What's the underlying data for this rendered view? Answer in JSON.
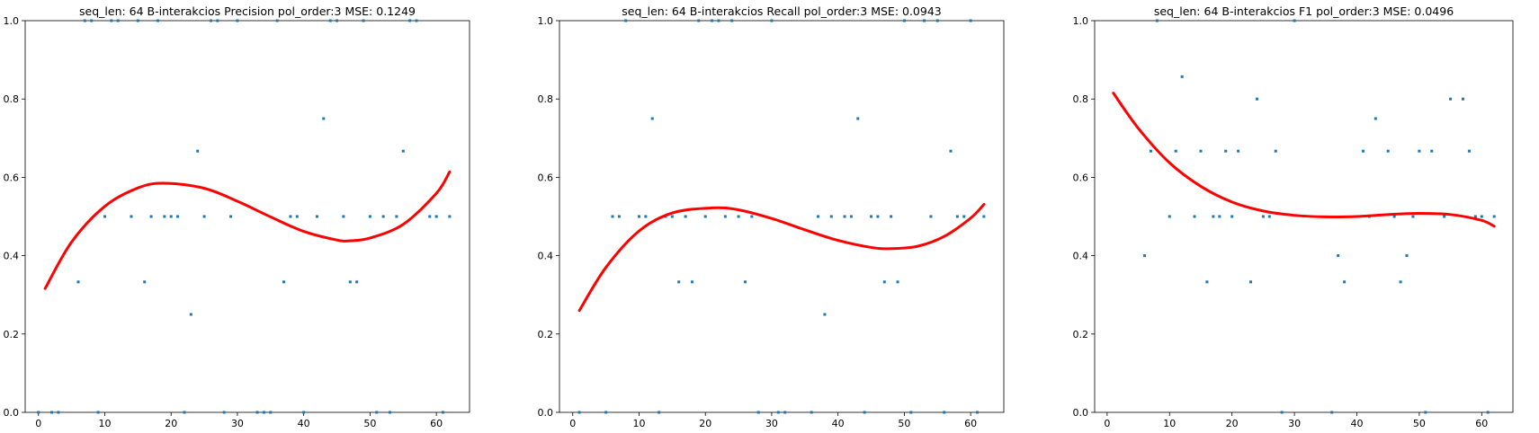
{
  "chart_data": [
    {
      "type": "scatter",
      "title": "seq_len: 64    B-interakcios   Precision   pol_order:3    MSE: 0.1249",
      "xlabel": "",
      "ylabel": "",
      "xlim": [
        -2,
        65
      ],
      "ylim": [
        0,
        1
      ],
      "xticks": [
        0,
        10,
        20,
        30,
        40,
        50,
        60
      ],
      "yticks": [
        0.0,
        0.2,
        0.4,
        0.6,
        0.8,
        1.0
      ],
      "point_color": "#1f77b4",
      "fit_color": "#ff0000",
      "points": {
        "x": [
          0,
          2,
          3,
          6,
          7,
          8,
          9,
          10,
          11,
          12,
          14,
          15,
          16,
          17,
          18,
          19,
          20,
          21,
          22,
          23,
          24,
          25,
          26,
          27,
          28,
          29,
          30,
          33,
          34,
          35,
          36,
          37,
          38,
          39,
          40,
          42,
          43,
          44,
          45,
          46,
          47,
          48,
          49,
          50,
          51,
          52,
          53,
          54,
          55,
          56,
          57,
          59,
          60,
          61,
          62
        ],
        "y": [
          0,
          0,
          0,
          0.333,
          1,
          1,
          0,
          0.5,
          1,
          1,
          0.5,
          1,
          0.333,
          0.5,
          1,
          0.5,
          0.5,
          0.5,
          0,
          0.25,
          0.667,
          0.5,
          1,
          1,
          0,
          0.5,
          1,
          0,
          0,
          0,
          1,
          0.333,
          0.5,
          0.5,
          0,
          0.5,
          0.75,
          1,
          1,
          0.5,
          0.333,
          0.333,
          1,
          0.5,
          0,
          0.5,
          0,
          0.5,
          0.667,
          1,
          1,
          0.5,
          0.5,
          0,
          0.5
        ]
      },
      "fit_curve": {
        "x": [
          1,
          5,
          10,
          15,
          19,
          25,
          30,
          35,
          40,
          45,
          47,
          50,
          55,
          60,
          62
        ],
        "y": [
          0.316,
          0.435,
          0.526,
          0.573,
          0.585,
          0.572,
          0.539,
          0.499,
          0.462,
          0.44,
          0.438,
          0.445,
          0.48,
          0.559,
          0.614
        ]
      }
    },
    {
      "type": "scatter",
      "title": "seq_len: 64    B-interakcios   Recall   pol_order:3    MSE: 0.0943",
      "xlabel": "",
      "ylabel": "",
      "xlim": [
        -2,
        65
      ],
      "ylim": [
        0,
        1
      ],
      "xticks": [
        0,
        10,
        20,
        30,
        40,
        50,
        60
      ],
      "yticks": [
        0.0,
        0.2,
        0.4,
        0.6,
        0.8,
        1.0
      ],
      "point_color": "#1f77b4",
      "fit_color": "#ff0000",
      "points": {
        "x": [
          1,
          5,
          6,
          7,
          8,
          10,
          11,
          12,
          13,
          14,
          15,
          16,
          17,
          18,
          19,
          20,
          21,
          22,
          23,
          24,
          25,
          26,
          27,
          28,
          30,
          31,
          32,
          36,
          37,
          38,
          39,
          41,
          42,
          43,
          44,
          45,
          46,
          47,
          48,
          49,
          50,
          51,
          53,
          54,
          55,
          56,
          57,
          58,
          59,
          60,
          61,
          62
        ],
        "y": [
          0,
          0,
          0.5,
          0.5,
          1,
          0.5,
          0.5,
          0.75,
          0,
          0.5,
          0.5,
          0.333,
          0.5,
          0.333,
          1,
          0.5,
          1,
          1,
          0.5,
          1,
          0.5,
          0.333,
          0.5,
          0,
          1,
          0,
          0,
          0,
          0.5,
          0.25,
          0.5,
          0.5,
          0.5,
          0.75,
          0,
          0.5,
          0.5,
          0.333,
          0.5,
          0.333,
          1,
          0,
          1,
          0.5,
          1,
          0,
          0.667,
          0.5,
          0.5,
          1,
          0,
          0.5
        ]
      },
      "fit_curve": {
        "x": [
          1,
          5,
          10,
          15,
          21,
          25,
          30,
          35,
          40,
          45,
          48,
          52,
          56,
          60,
          62
        ],
        "y": [
          0.26,
          0.37,
          0.463,
          0.509,
          0.522,
          0.517,
          0.495,
          0.466,
          0.439,
          0.421,
          0.418,
          0.424,
          0.449,
          0.496,
          0.531
        ]
      }
    },
    {
      "type": "scatter",
      "title": "seq_len: 64    B-interakcios   F1   pol_order:3    MSE: 0.0496",
      "xlabel": "",
      "ylabel": "",
      "xlim": [
        -2,
        65
      ],
      "ylim": [
        0,
        1
      ],
      "xticks": [
        0,
        10,
        20,
        30,
        40,
        50,
        60
      ],
      "yticks": [
        0.0,
        0.2,
        0.4,
        0.6,
        0.8,
        1.0
      ],
      "point_color": "#1f77b4",
      "fit_color": "#ff0000",
      "points": {
        "x": [
          6,
          7,
          8,
          10,
          11,
          12,
          14,
          15,
          16,
          17,
          18,
          19,
          20,
          21,
          23,
          24,
          25,
          26,
          27,
          28,
          30,
          36,
          37,
          38,
          41,
          42,
          43,
          45,
          46,
          47,
          48,
          49,
          50,
          51,
          52,
          54,
          55,
          57,
          58,
          59,
          60,
          61,
          62
        ],
        "y": [
          0.4,
          0.667,
          1,
          0.5,
          0.667,
          0.857,
          0.5,
          0.667,
          0.333,
          0.5,
          0.5,
          0.667,
          0.5,
          0.667,
          0.333,
          0.8,
          0.5,
          0.5,
          0.667,
          0,
          1,
          0,
          0.4,
          0.333,
          0.667,
          0.5,
          0.75,
          0.667,
          0.5,
          0.333,
          0.4,
          0.5,
          0.667,
          0,
          0.667,
          0.5,
          0.8,
          0.8,
          0.667,
          0.5,
          0.5,
          0,
          0.5
        ]
      },
      "fit_curve": {
        "x": [
          1,
          5,
          10,
          15,
          20,
          25,
          30,
          35,
          40,
          45,
          50,
          55,
          60,
          62
        ],
        "y": [
          0.815,
          0.725,
          0.637,
          0.577,
          0.537,
          0.514,
          0.503,
          0.499,
          0.5,
          0.505,
          0.508,
          0.505,
          0.49,
          0.475
        ]
      }
    }
  ]
}
